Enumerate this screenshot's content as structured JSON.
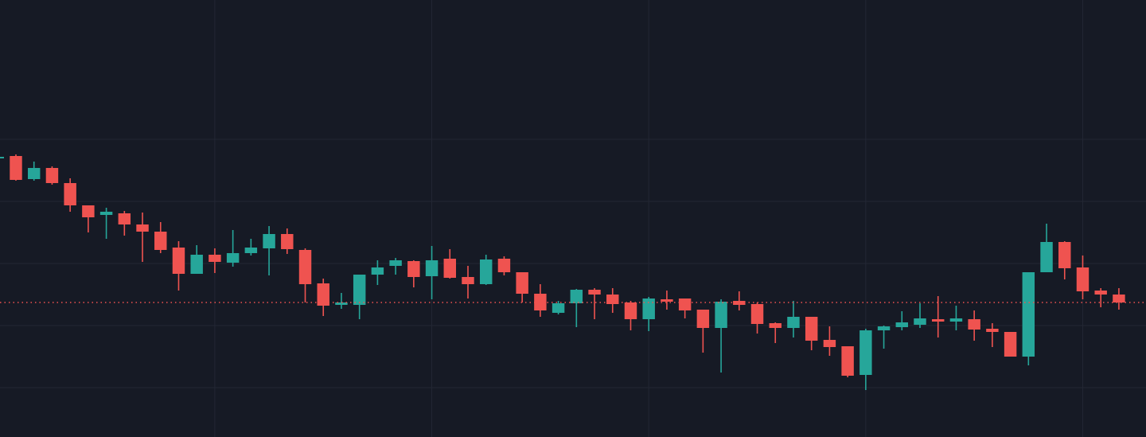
{
  "chart_data": {
    "type": "candlestick",
    "x": [
      0,
      1,
      2,
      3,
      4,
      5,
      6,
      7,
      8,
      9,
      10,
      11,
      12,
      13,
      14,
      15,
      16,
      17,
      18,
      19,
      20,
      21,
      22,
      23,
      24,
      25,
      26,
      27,
      28,
      29,
      30,
      31,
      32,
      33,
      34,
      35,
      36,
      37,
      38,
      39,
      40,
      41,
      42,
      43,
      44,
      45,
      46,
      47,
      48,
      49,
      50,
      51,
      52,
      53,
      54,
      55,
      56,
      57,
      58,
      59,
      60,
      61,
      62
    ],
    "open": [
      350,
      353,
      324,
      338,
      319,
      291,
      279,
      281,
      267,
      258,
      238,
      205,
      229,
      219,
      231,
      237,
      255,
      235,
      193,
      166,
      166,
      204,
      215,
      221,
      202,
      224,
      201,
      192,
      224,
      207,
      180,
      156,
      168,
      185,
      179,
      169,
      148,
      173,
      174,
      160,
      137,
      171,
      167,
      143,
      137,
      151,
      122,
      114,
      78,
      134,
      138,
      141,
      148,
      145,
      148,
      136,
      132,
      101,
      207,
      245,
      213,
      184,
      179
    ],
    "high": [
      353,
      355,
      346,
      340,
      325,
      291,
      288,
      284,
      282,
      270,
      246,
      241,
      237,
      260,
      249,
      265,
      262,
      237,
      199,
      181,
      204,
      222,
      225,
      222,
      240,
      236,
      215,
      229,
      227,
      207,
      192,
      171,
      186,
      187,
      187,
      171,
      176,
      184,
      174,
      160,
      173,
      183,
      169,
      144,
      171,
      151,
      139,
      114,
      136,
      140,
      158,
      168,
      177,
      165,
      159,
      143,
      132,
      207,
      268,
      246,
      228,
      187,
      187
    ],
    "low": [
      349,
      322,
      322,
      317,
      283,
      257,
      249,
      253,
      220,
      231,
      184,
      205,
      206,
      214,
      228,
      203,
      230,
      169,
      152,
      161,
      148,
      191,
      204,
      188,
      173,
      199,
      174,
      191,
      203,
      169,
      151,
      154,
      138,
      148,
      156,
      134,
      133,
      160,
      149,
      106,
      81,
      159,
      130,
      118,
      125,
      109,
      102,
      75,
      59,
      111,
      134,
      137,
      125,
      134,
      121,
      113,
      101,
      90,
      207,
      198,
      173,
      163,
      160
    ],
    "close": [
      352,
      323,
      338,
      319,
      291,
      276,
      283,
      267,
      258,
      235,
      205,
      229,
      220,
      231,
      238,
      255,
      236,
      192,
      165,
      169,
      204,
      213,
      222,
      201,
      222,
      200,
      192,
      223,
      207,
      180,
      159,
      168,
      185,
      179,
      167,
      148,
      174,
      170,
      159,
      137,
      170,
      166,
      142,
      137,
      151,
      121,
      113,
      77,
      134,
      139,
      144,
      149,
      145,
      149,
      135,
      132,
      101,
      207,
      245,
      212,
      183,
      179,
      169
    ],
    "up_color": "#26a69a",
    "down_color": "#ef5350",
    "xlim": [
      0.12,
      63.5
    ],
    "ylim": [
      0,
      549
    ],
    "xticks": [
      12,
      24,
      36,
      48,
      60
    ],
    "yticks": [
      62,
      140,
      218,
      296,
      374
    ],
    "grid": true,
    "price_line": true
  }
}
